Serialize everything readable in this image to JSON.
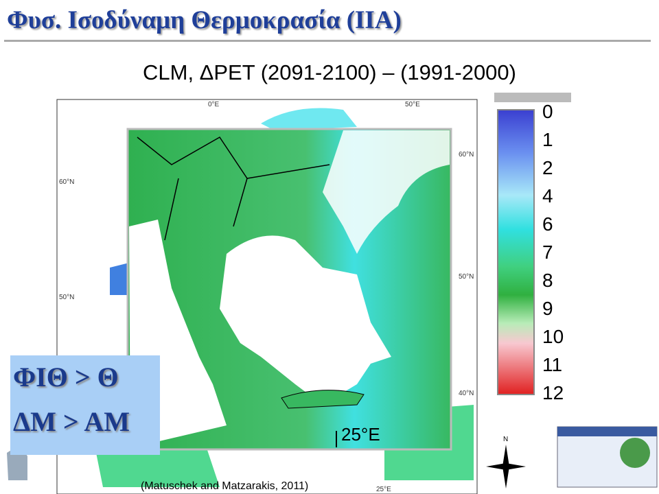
{
  "header": {
    "title": "Φυσ. Ισοδύναμη Θερμοκρασία  (ΙΙΑ)"
  },
  "figure": {
    "caption": "CLM, ΔPET (2091-2100) – (1991-2000)",
    "colorbar": {
      "labels": [
        0,
        1,
        2,
        4,
        6,
        7,
        8,
        9,
        10,
        11,
        12
      ]
    },
    "map_labels": [
      "0°E",
      "50°E",
      "60°N",
      "60°N",
      "50°N",
      "50°N",
      "40°N",
      "25°E"
    ],
    "inset_label": "25°E",
    "source": "(Matuschek and Matzarakis, 2011)",
    "compass": "N"
  },
  "callout": {
    "lines": [
      "ΦΙΘ > Θ",
      "ΔΜ > ΑΜ"
    ]
  }
}
